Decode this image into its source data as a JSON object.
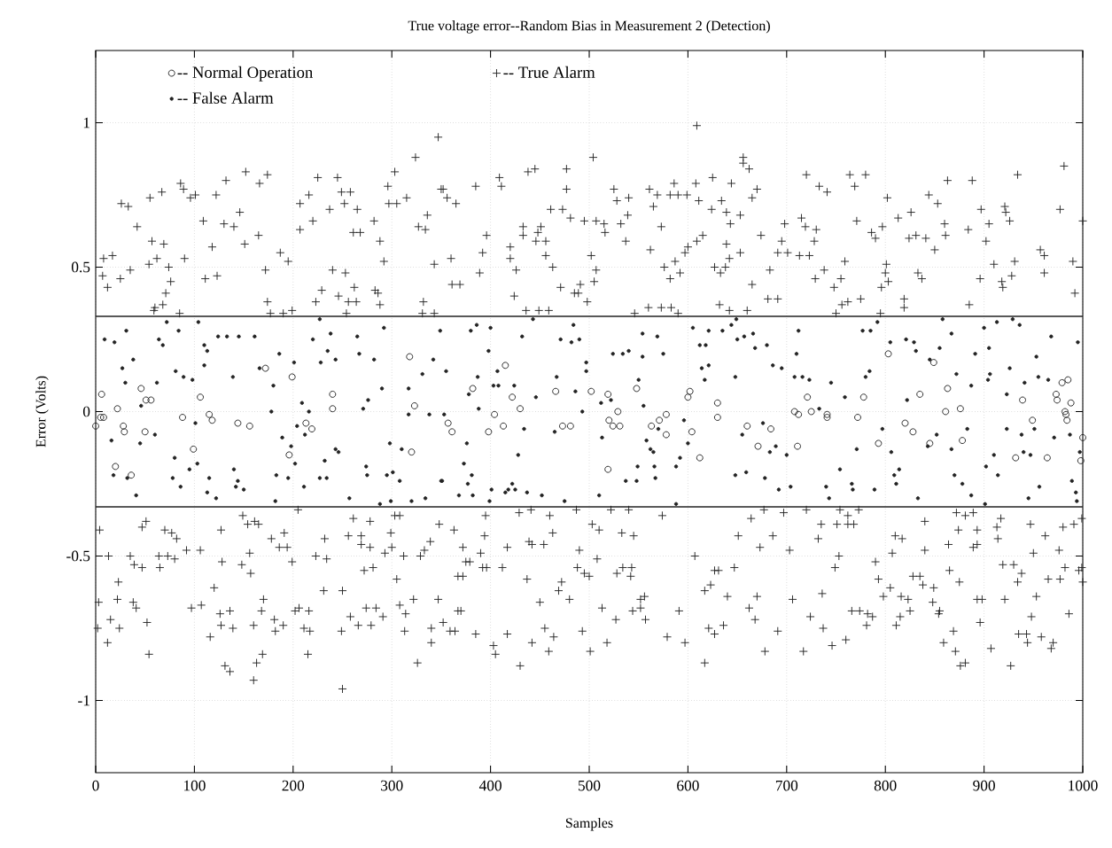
{
  "chart_data": {
    "type": "scatter",
    "title": "True voltage error--Random Bias in Measurement 2 (Detection)",
    "xlabel": "Samples",
    "ylabel": "Error (Volts)",
    "xlim": [
      0,
      1000
    ],
    "ylim": [
      -1.25,
      1.25
    ],
    "xticks": [
      0,
      100,
      200,
      300,
      400,
      500,
      600,
      700,
      800,
      900,
      1000
    ],
    "yticks": [
      -1,
      -0.5,
      0,
      0.5,
      1
    ],
    "grid": true,
    "legend": "top left",
    "ref_lines": [
      {
        "axis": "y",
        "value": 0.33,
        "color": "#222222",
        "line_style": "solid"
      },
      {
        "axis": "y",
        "value": -0.33,
        "color": "#222222",
        "line_style": "solid"
      }
    ],
    "series": [
      {
        "name": "-- Normal Operation",
        "color": "#222222",
        "marker": "circle",
        "x": [
          6,
          22,
          46,
          51,
          56,
          106,
          172,
          199,
          240,
          240,
          318,
          323,
          5,
          8,
          0,
          28,
          29,
          50,
          20,
          36,
          88,
          99,
          115,
          118,
          144,
          156,
          196,
          213,
          219,
          320,
          415,
          382,
          422,
          466,
          502,
          519,
          548,
          600,
          602,
          630,
          430,
          404,
          529,
          578,
          357,
          361,
          398,
          413,
          473,
          481,
          519,
          520,
          524,
          531,
          563,
          571,
          578,
          604,
          612,
          630,
          660,
          671,
          684,
          721,
          708,
          712,
          725,
          741,
          778,
          803,
          849,
          835,
          863,
          861,
          876,
          939,
          973,
          974,
          979,
          985,
          988,
          982,
          711,
          741,
          772,
          793,
          820,
          828,
          845,
          878,
          932,
          964,
          949,
          983,
          984,
          1000,
          998
        ],
        "values": [
          0.06,
          0.01,
          0.08,
          0.04,
          0.04,
          0.05,
          0.15,
          0.12,
          0.06,
          0.01,
          0.19,
          0.02,
          -0.02,
          -0.02,
          -0.05,
          -0.05,
          -0.07,
          -0.07,
          -0.19,
          -0.22,
          -0.02,
          -0.13,
          -0.01,
          -0.03,
          -0.04,
          -0.05,
          -0.15,
          -0.04,
          -0.06,
          -0.14,
          0.16,
          0.08,
          0.05,
          0.07,
          0.07,
          0.06,
          0.08,
          0.05,
          0.07,
          0.03,
          0.01,
          -0.01,
          0.0,
          -0.01,
          -0.04,
          -0.07,
          -0.07,
          -0.05,
          -0.05,
          -0.05,
          -0.2,
          -0.03,
          -0.05,
          -0.05,
          -0.05,
          -0.03,
          -0.08,
          -0.07,
          -0.16,
          -0.02,
          -0.05,
          -0.12,
          -0.06,
          0.05,
          0.0,
          -0.01,
          0.0,
          -0.01,
          0.05,
          0.2,
          0.17,
          0.06,
          0.08,
          0.0,
          0.01,
          0.04,
          0.06,
          0.04,
          0.1,
          0.11,
          0.03,
          0.0,
          -0.12,
          -0.02,
          -0.02,
          -0.11,
          -0.04,
          -0.07,
          -0.11,
          -0.1,
          -0.16,
          -0.16,
          -0.03,
          -0.01,
          -0.03,
          -0.09,
          -0.17
        ]
      },
      {
        "name": "-- True Alarm",
        "color": "#222222",
        "marker": "plus",
        "x": [
          8,
          17,
          7,
          25,
          35,
          12,
          26,
          33,
          42,
          55,
          67,
          57,
          69,
          62,
          54,
          74,
          76,
          71,
          60,
          68,
          59,
          85,
          86,
          89,
          96,
          101,
          90,
          109,
          111,
          123,
          118,
          122,
          130,
          140,
          132,
          146,
          152,
          151,
          165,
          166,
          174,
          172,
          174,
          177,
          187,
          195,
          190,
          199,
          207,
          207,
          216,
          220,
          225,
          237,
          245,
          249,
          258,
          252,
          265,
          261,
          268,
          282,
          288,
          292,
          296,
          303,
          297,
          305,
          315,
          324,
          336,
          327,
          334,
          343,
          347,
          350,
          240,
          253,
          262,
          229,
          246,
          256,
          264,
          223,
          283,
          286,
          288,
          332,
          254,
          331,
          343,
          352,
          356,
          365,
          385,
          360,
          361,
          369,
          389,
          392,
          396,
          409,
          411,
          420,
          420,
          426,
          424,
          433,
          433,
          446,
          448,
          451,
          456,
          456,
          463,
          438,
          445,
          436,
          449,
          459,
          461,
          473,
          481,
          477,
          477,
          471,
          485,
          489,
          491,
          498,
          495,
          507,
          515,
          516,
          502,
          507,
          505,
          504,
          525,
          528,
          540,
          539,
          532,
          537,
          546,
          561,
          569,
          565,
          573,
          562,
          560,
          573,
          583,
          590,
          586,
          582,
          590,
          599,
          576,
          582,
          592,
          587,
          597,
          600,
          609,
          608,
          611,
          609,
          615,
          625,
          624,
          632,
          642,
          627,
          633,
          638,
          639,
          642,
          634,
          639,
          643,
          644,
          653,
          653,
          656,
          656,
          662,
          670,
          665,
          665,
          660,
          674,
          683,
          681,
          691,
          691,
          701,
          695,
          698,
          720,
          713,
          723,
          728,
          730,
          719,
          715,
          733,
          741,
          729,
          738,
          748,
          755,
          759,
          756,
          762,
          775,
          750,
          764,
          769,
          780,
          771,
          786,
          790,
          797,
          796,
          800,
          803,
          801,
          802,
          795,
          813,
          826,
          819,
          819,
          824,
          831,
          841,
          850,
          833,
          837,
          844,
          853,
          860,
          861,
          863,
          884,
          888,
          897,
          905,
          902,
          896,
          885,
          910,
          918,
          919,
          928,
          931,
          921,
          922,
          926,
          934,
          957,
          961,
          961,
          977,
          981,
          990,
          992,
          1000,
          4,
          3,
          2,
          13,
          35,
          39,
          47,
          12,
          15,
          22,
          23,
          24,
          38,
          41,
          47,
          51,
          52,
          54,
          65,
          64,
          73,
          80,
          70,
          77,
          82,
          92,
          106,
          97,
          107,
          116,
          120,
          127,
          128,
          126,
          127,
          139,
          136,
          131,
          136,
          149,
          154,
          161,
          165,
          156,
          148,
          157,
          160,
          168,
          170,
          169,
          163,
          160,
          178,
          191,
          186,
          194,
          181,
          182,
          190,
          199,
          202,
          206,
          216,
          211,
          217,
          215,
          205,
          223,
          232,
          234,
          231,
          250,
          249,
          250,
          256,
          261,
          269,
          269,
          278,
          278,
          272,
          281,
          258,
          266,
          279,
          274,
          284,
          291,
          293,
          299,
          300,
          303,
          308,
          305,
          308,
          314,
          313,
          312,
          322,
          326,
          329,
          333,
          339,
          340,
          340,
          348,
          347,
          352,
          359,
          364,
          363,
          372,
          375,
          379,
          367,
          372,
          367,
          370,
          385,
          390,
          392,
          396,
          394,
          395,
          403,
          405,
          412,
          417,
          417,
          429,
          441,
          430,
          437,
          439,
          442,
          454,
          450,
          442,
          455,
          464,
          459,
          460,
          463,
          472,
          469,
          480,
          487,
          490,
          488,
          495,
          500,
          493,
          501,
          503,
          510,
          508,
          513,
          518,
          522,
          527,
          528,
          534,
          543,
          542,
          533,
          545,
          540,
          544,
          552,
          552,
          556,
          557,
          574,
          579,
          591,
          597,
          607,
          617,
          623,
          627,
          631,
          617,
          621,
          627,
          636,
          640,
          647,
          651,
          664,
          662,
          668,
          670,
          673,
          677,
          686,
          678,
          691,
          697,
          703,
          706,
          720,
          717,
          724,
          735,
          732,
          736,
          737,
          746,
          749,
          753,
          751,
          754,
          762,
          762,
          768,
          773,
          760,
          766,
          774,
          782,
          787,
          781,
          790,
          793,
          798,
          805,
          807,
          810,
          817,
          811,
          815,
          816,
          823,
          825,
          828,
          835,
          838,
          840,
          840,
          849,
          848,
          855,
          854,
          859,
          864,
          865,
          872,
          874,
          875,
          881,
          889,
          893,
          893,
          889,
          869,
          871,
          876,
          881,
          893,
          898,
          896,
          907,
          917,
          913,
          914,
          919,
          930,
          938,
          934,
          921,
          927,
          935,
          943,
          944,
          947,
          950,
          953,
          948,
          958,
          962,
          965,
          968,
          970,
          976,
          977,
          980,
          982,
          991,
          986,
          996,
          999,
          1000,
          999
        ],
        "values": [
          0.53,
          0.54,
          0.47,
          0.46,
          0.49,
          0.43,
          0.72,
          0.71,
          0.64,
          0.74,
          0.76,
          0.59,
          0.58,
          0.53,
          0.51,
          0.5,
          0.45,
          0.41,
          0.36,
          0.37,
          0.35,
          0.34,
          0.79,
          0.77,
          0.74,
          0.75,
          0.53,
          0.66,
          0.46,
          0.47,
          0.57,
          0.75,
          0.65,
          0.64,
          0.8,
          0.69,
          0.83,
          0.58,
          0.61,
          0.79,
          0.82,
          0.49,
          0.38,
          0.34,
          0.55,
          0.52,
          0.34,
          0.35,
          0.63,
          0.72,
          0.75,
          0.66,
          0.81,
          0.7,
          0.81,
          0.76,
          0.76,
          0.72,
          0.7,
          0.62,
          0.62,
          0.66,
          0.59,
          0.52,
          0.78,
          0.83,
          0.72,
          0.72,
          0.74,
          0.88,
          0.68,
          0.64,
          0.63,
          0.51,
          0.95,
          0.77,
          0.49,
          0.48,
          0.43,
          0.42,
          0.4,
          0.38,
          0.38,
          0.38,
          0.42,
          0.41,
          0.37,
          0.38,
          0.34,
          0.34,
          0.34,
          0.77,
          0.74,
          0.72,
          0.78,
          0.53,
          0.44,
          0.44,
          0.48,
          0.55,
          0.61,
          0.81,
          0.78,
          0.57,
          0.53,
          0.49,
          0.4,
          0.64,
          0.61,
          0.59,
          0.62,
          0.64,
          0.59,
          0.54,
          0.5,
          0.83,
          0.84,
          0.35,
          0.35,
          0.35,
          0.7,
          0.7,
          0.67,
          0.84,
          0.77,
          0.43,
          0.41,
          0.41,
          0.44,
          0.38,
          0.66,
          0.66,
          0.65,
          0.62,
          0.54,
          0.49,
          0.45,
          0.88,
          0.77,
          0.73,
          0.74,
          0.68,
          0.65,
          0.59,
          0.34,
          0.77,
          0.75,
          0.71,
          0.64,
          0.56,
          0.36,
          0.36,
          0.36,
          0.34,
          0.79,
          0.75,
          0.75,
          0.75,
          0.5,
          0.46,
          0.48,
          0.52,
          0.55,
          0.57,
          0.99,
          0.79,
          0.73,
          0.59,
          0.61,
          0.81,
          0.7,
          0.37,
          0.35,
          0.5,
          0.48,
          0.5,
          0.58,
          0.53,
          0.73,
          0.69,
          0.65,
          0.79,
          0.68,
          0.55,
          0.88,
          0.86,
          0.84,
          0.77,
          0.74,
          0.44,
          0.35,
          0.61,
          0.49,
          0.39,
          0.39,
          0.55,
          0.55,
          0.59,
          0.65,
          0.82,
          0.54,
          0.54,
          0.59,
          0.63,
          0.64,
          0.67,
          0.78,
          0.76,
          0.46,
          0.49,
          0.43,
          0.46,
          0.52,
          0.37,
          0.38,
          0.39,
          0.34,
          0.82,
          0.78,
          0.82,
          0.66,
          0.62,
          0.6,
          0.64,
          0.43,
          0.48,
          0.45,
          0.51,
          0.74,
          0.34,
          0.67,
          0.69,
          0.39,
          0.36,
          0.6,
          0.61,
          0.6,
          0.56,
          0.48,
          0.46,
          0.75,
          0.72,
          0.65,
          0.61,
          0.8,
          0.63,
          0.8,
          0.7,
          0.65,
          0.59,
          0.46,
          0.37,
          0.51,
          0.45,
          0.43,
          0.47,
          0.52,
          0.71,
          0.69,
          0.66,
          0.82,
          0.56,
          0.54,
          0.48,
          0.7,
          0.85,
          0.52,
          0.41,
          0.66,
          -0.41,
          -0.66,
          -0.75,
          -0.5,
          -0.5,
          -0.53,
          -0.54,
          -0.8,
          -0.72,
          -0.65,
          -0.59,
          -0.75,
          -0.66,
          -0.68,
          -0.4,
          -0.38,
          -0.73,
          -0.84,
          -0.54,
          -0.5,
          -0.5,
          -0.51,
          -0.41,
          -0.42,
          -0.44,
          -0.48,
          -0.48,
          -0.68,
          -0.67,
          -0.78,
          -0.61,
          -0.41,
          -0.52,
          -0.7,
          -0.74,
          -0.75,
          -0.69,
          -0.88,
          -0.9,
          -0.36,
          -0.39,
          -0.38,
          -0.39,
          -0.49,
          -0.53,
          -0.56,
          -0.74,
          -0.69,
          -0.65,
          -0.84,
          -0.87,
          -0.93,
          -0.44,
          -0.42,
          -0.47,
          -0.47,
          -0.72,
          -0.76,
          -0.74,
          -0.52,
          -0.69,
          -0.68,
          -0.69,
          -0.75,
          -0.76,
          -0.84,
          -0.34,
          -0.5,
          -0.44,
          -0.51,
          -0.62,
          -0.62,
          -0.76,
          -0.96,
          -0.43,
          -0.37,
          -0.43,
          -0.46,
          -0.47,
          -0.38,
          -0.55,
          -0.54,
          -0.71,
          -0.74,
          -0.74,
          -0.68,
          -0.68,
          -0.71,
          -0.49,
          -0.42,
          -0.47,
          -0.36,
          -0.36,
          -0.58,
          -0.67,
          -0.7,
          -0.76,
          -0.5,
          -0.65,
          -0.87,
          -0.5,
          -0.48,
          -0.45,
          -0.75,
          -0.8,
          -0.39,
          -0.65,
          -0.73,
          -0.76,
          -0.76,
          -0.41,
          -0.47,
          -0.52,
          -0.52,
          -0.57,
          -0.57,
          -0.69,
          -0.69,
          -0.77,
          -0.49,
          -0.54,
          -0.54,
          -0.43,
          -0.36,
          -0.81,
          -0.84,
          -0.54,
          -0.47,
          -0.77,
          -0.35,
          -0.34,
          -0.88,
          -0.58,
          -0.45,
          -0.46,
          -0.46,
          -0.66,
          -0.8,
          -0.75,
          -0.78,
          -0.83,
          -0.36,
          -0.42,
          -0.59,
          -0.62,
          -0.65,
          -0.34,
          -0.48,
          -0.54,
          -0.56,
          -0.57,
          -0.76,
          -0.83,
          -0.39,
          -0.41,
          -0.51,
          -0.68,
          -0.8,
          -0.34,
          -0.72,
          -0.56,
          -0.54,
          -0.54,
          -0.57,
          -0.42,
          -0.43,
          -0.34,
          -0.69,
          -0.68,
          -0.65,
          -0.64,
          -0.72,
          -0.36,
          -0.78,
          -0.69,
          -0.8,
          -0.5,
          -0.62,
          -0.6,
          -0.55,
          -0.55,
          -0.87,
          -0.75,
          -0.77,
          -0.74,
          -0.64,
          -0.54,
          -0.43,
          -0.37,
          -0.68,
          -0.72,
          -0.64,
          -0.47,
          -0.34,
          -0.43,
          -0.83,
          -0.76,
          -0.35,
          -0.48,
          -0.65,
          -0.34,
          -0.83,
          -0.71,
          -0.39,
          -0.44,
          -0.63,
          -0.75,
          -0.81,
          -0.54,
          -0.5,
          -0.39,
          -0.34,
          -0.36,
          -0.39,
          -0.39,
          -0.34,
          -0.79,
          -0.69,
          -0.69,
          -0.7,
          -0.71,
          -0.74,
          -0.52,
          -0.58,
          -0.64,
          -0.61,
          -0.49,
          -0.43,
          -0.44,
          -0.74,
          -0.71,
          -0.64,
          -0.65,
          -0.69,
          -0.57,
          -0.57,
          -0.6,
          -0.38,
          -0.48,
          -0.61,
          -0.66,
          -0.69,
          -0.7,
          -0.8,
          -0.46,
          -0.55,
          -0.35,
          -0.41,
          -0.59,
          -0.36,
          -0.35,
          -0.41,
          -0.46,
          -0.47,
          -0.76,
          -0.83,
          -0.88,
          -0.87,
          -0.65,
          -0.65,
          -0.73,
          -0.82,
          -0.37,
          -0.4,
          -0.44,
          -0.53,
          -0.53,
          -0.56,
          -0.59,
          -0.65,
          -0.88,
          -0.77,
          -0.77,
          -0.8,
          -0.39,
          -0.49,
          -0.64,
          -0.71,
          -0.78,
          -0.43,
          -0.58,
          -0.82,
          -0.8,
          -0.48,
          -0.58,
          -0.4,
          -0.54,
          -0.39,
          -0.7,
          -0.55,
          -0.37,
          -0.59,
          -0.54
        ]
      },
      {
        "name": "-- False Alarm",
        "color": "#222222",
        "marker": "dot",
        "x": [
          9,
          19,
          31,
          38,
          27,
          30,
          64,
          68,
          72,
          84,
          62,
          46,
          81,
          89,
          98,
          104,
          110,
          113,
          110,
          124,
          133,
          145,
          161,
          166,
          139,
          186,
          180,
          201,
          220,
          228,
          235,
          243,
          238,
          265,
          267,
          282,
          290,
          292,
          317,
          331,
          342,
          349,
          209,
          276,
          227,
          16,
          18,
          32,
          41,
          45,
          60,
          80,
          78,
          86,
          95,
          101,
          103,
          113,
          115,
          122,
          140,
          144,
          142,
          150,
          178,
          189,
          198,
          202,
          183,
          195,
          182,
          204,
          212,
          216,
          211,
          232,
          227,
          234,
          243,
          246,
          271,
          274,
          275,
          257,
          288,
          298,
          310,
          295,
          301,
          308,
          317,
          338,
          334,
          320,
          350,
          299,
          355,
          380,
          386,
          387,
          378,
          400,
          398,
          407,
          403,
          408,
          388,
          432,
          443,
          424,
          446,
          471,
          482,
          490,
          484,
          467,
          486,
          497,
          497,
          524,
          534,
          540,
          512,
          522,
          554,
          569,
          575,
          554,
          550,
          555,
          605,
          621,
          635,
          644,
          649,
          650,
          657,
          666,
          668,
          680,
          612,
          618,
          614,
          621,
          617,
          648,
          686,
          493,
          353,
          376,
          373,
          351,
          377,
          381,
          368,
          382,
          399,
          401,
          415,
          418,
          425,
          422,
          428,
          434,
          437,
          452,
          465,
          475,
          510,
          513,
          537,
          548,
          558,
          562,
          565,
          570,
          549,
          566,
          567,
          588,
          592,
          596,
          600,
          588,
          648,
          659,
          655,
          676,
          683,
          689,
          678,
          692,
          695,
          708,
          716,
          723,
          712,
          710,
          745,
          759,
          777,
          785,
          792,
          784,
          780,
          805,
          821,
          829,
          831,
          855,
          867,
          858,
          845,
          872,
          887,
          822,
          891,
          900,
          905,
          904,
          906,
          913,
          929,
          936,
          923,
          926,
          941,
          953,
          955,
          965,
          968,
          995,
          704,
          700,
          733,
          740,
          743,
          754,
          766,
          767,
          771,
          789,
          797,
          806,
          809,
          814,
          811,
          833,
          843,
          852,
          867,
          870,
          878,
          883,
          887,
          902,
          910,
          914,
          923,
          938,
          940,
          947,
          951,
          956,
          945,
          971,
          987,
          997,
          989,
          993,
          994,
          901
        ],
        "values": [
          0.25,
          0.24,
          0.28,
          0.18,
          0.15,
          0.1,
          0.25,
          0.23,
          0.31,
          0.28,
          0.1,
          0.02,
          0.14,
          0.12,
          0.11,
          0.31,
          0.23,
          0.21,
          0.16,
          0.26,
          0.26,
          0.26,
          0.26,
          0.15,
          0.12,
          0.2,
          0.09,
          0.17,
          0.25,
          0.17,
          0.21,
          0.18,
          0.27,
          0.26,
          0.2,
          0.18,
          0.08,
          0.29,
          0.08,
          0.13,
          0.18,
          0.28,
          0.03,
          0.04,
          0.32,
          -0.1,
          -0.22,
          -0.23,
          -0.29,
          -0.11,
          -0.08,
          -0.16,
          -0.23,
          -0.26,
          -0.2,
          -0.04,
          -0.18,
          -0.28,
          -0.23,
          -0.3,
          -0.2,
          -0.24,
          -0.26,
          -0.27,
          0.0,
          -0.09,
          -0.12,
          -0.18,
          -0.22,
          -0.23,
          -0.31,
          -0.05,
          -0.08,
          0.0,
          -0.26,
          -0.17,
          -0.23,
          -0.23,
          -0.13,
          -0.14,
          0.01,
          -0.19,
          -0.22,
          -0.3,
          -0.32,
          -0.11,
          -0.13,
          -0.22,
          -0.21,
          -0.24,
          -0.01,
          -0.01,
          -0.3,
          -0.31,
          -0.24,
          -0.31,
          0.14,
          0.28,
          0.3,
          0.12,
          0.06,
          0.29,
          0.21,
          0.14,
          0.09,
          0.09,
          0.01,
          0.26,
          0.32,
          0.09,
          0.05,
          0.25,
          0.24,
          0.25,
          0.3,
          0.12,
          0.07,
          0.17,
          0.14,
          0.2,
          0.2,
          0.21,
          0.03,
          0.04,
          0.27,
          0.26,
          0.2,
          0.19,
          0.11,
          0.02,
          0.29,
          0.28,
          0.28,
          0.3,
          0.32,
          0.25,
          0.26,
          0.27,
          0.22,
          0.23,
          0.23,
          0.23,
          0.15,
          0.16,
          0.11,
          0.12,
          0.16,
          0.0,
          -0.01,
          -0.11,
          -0.18,
          -0.24,
          -0.25,
          -0.22,
          -0.29,
          -0.29,
          -0.31,
          -0.27,
          -0.28,
          -0.27,
          -0.27,
          -0.25,
          -0.15,
          -0.06,
          -0.28,
          -0.29,
          -0.07,
          -0.31,
          -0.29,
          -0.09,
          -0.24,
          -0.24,
          -0.1,
          -0.13,
          -0.14,
          -0.06,
          -0.19,
          -0.19,
          -0.23,
          -0.19,
          -0.16,
          -0.03,
          -0.11,
          -0.32,
          -0.22,
          -0.21,
          -0.08,
          -0.04,
          -0.14,
          -0.12,
          -0.23,
          -0.27,
          0.15,
          0.12,
          0.12,
          0.11,
          0.28,
          0.2,
          0.1,
          0.05,
          0.28,
          0.28,
          0.31,
          0.14,
          0.12,
          0.24,
          0.25,
          0.24,
          0.21,
          0.22,
          0.27,
          0.32,
          0.18,
          0.13,
          0.09,
          0.04,
          0.2,
          0.29,
          0.22,
          0.11,
          0.13,
          0.31,
          0.32,
          0.3,
          0.06,
          0.15,
          0.1,
          0.19,
          0.12,
          0.11,
          0.26,
          0.24,
          -0.26,
          -0.15,
          0.01,
          -0.26,
          -0.3,
          -0.2,
          -0.25,
          -0.27,
          -0.13,
          -0.27,
          -0.06,
          -0.14,
          -0.22,
          -0.2,
          -0.25,
          -0.3,
          -0.12,
          -0.08,
          -0.13,
          -0.22,
          -0.25,
          -0.06,
          -0.29,
          -0.19,
          -0.15,
          -0.22,
          -0.06,
          -0.08,
          -0.14,
          -0.15,
          -0.06,
          -0.26,
          -0.3,
          -0.09,
          -0.08,
          -0.14,
          -0.24,
          -0.28,
          -0.31,
          -0.32
        ]
      }
    ]
  }
}
